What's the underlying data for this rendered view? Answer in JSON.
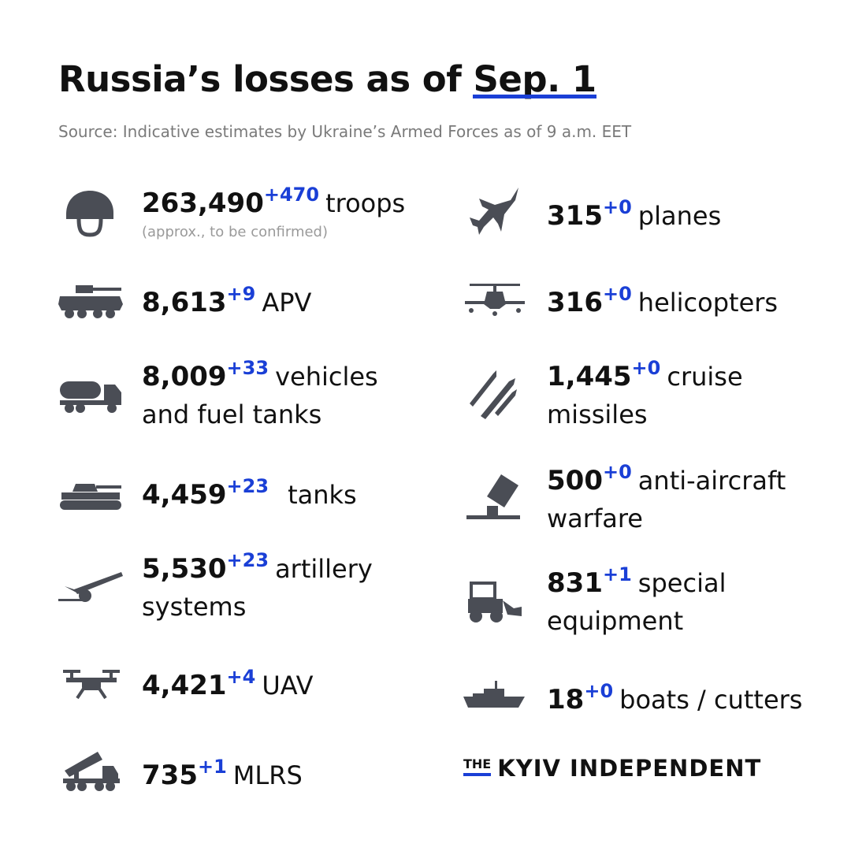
{
  "header": {
    "title_prefix": "Russia’s losses as of",
    "title_date": "Sep. 1",
    "source": "Source: Indicative estimates by Ukraine’s Armed Forces as of 9 a.m. EET"
  },
  "stats": {
    "troops": {
      "value": "263,490",
      "delta": "+470",
      "line1": "troops",
      "note": "(approx., to be confirmed)",
      "icon": "helmet-icon"
    },
    "apv": {
      "value": "8,613",
      "delta": "+9",
      "line1": "APV",
      "icon": "apc-icon"
    },
    "vehicles": {
      "value": "8,009",
      "delta": "+33",
      "line1": "vehicles",
      "line2": "and fuel tanks",
      "icon": "fuel-truck-icon"
    },
    "tanks": {
      "value": "4,459",
      "delta": "+23",
      "line1": "tanks",
      "icon": "tank-icon"
    },
    "artillery": {
      "value": "5,530",
      "delta": "+23",
      "line1": "artillery",
      "line2": "systems",
      "icon": "artillery-icon"
    },
    "uav": {
      "value": "4,421",
      "delta": "+4",
      "line1": "UAV",
      "icon": "drone-icon"
    },
    "mlrs": {
      "value": "735",
      "delta": "+1",
      "line1": "MLRS",
      "icon": "mlrs-icon"
    },
    "planes": {
      "value": "315",
      "delta": "+0",
      "line1": "planes",
      "icon": "jet-icon"
    },
    "helicopters": {
      "value": "316",
      "delta": "+0",
      "line1": "helicopters",
      "icon": "helicopter-icon"
    },
    "missiles": {
      "value": "1,445",
      "delta": "+0",
      "line1": "cruise",
      "line2": "missiles",
      "icon": "missile-icon"
    },
    "antiair": {
      "value": "500",
      "delta": "+0",
      "line1": "anti-aircraft",
      "line2": "warfare",
      "icon": "anti-aircraft-icon"
    },
    "special": {
      "value": "831",
      "delta": "+1",
      "line1": "special",
      "line2": "equipment",
      "icon": "loader-icon"
    },
    "boats": {
      "value": "18",
      "delta": "+0",
      "line1": "boats / cutters",
      "icon": "ship-icon"
    }
  },
  "footer": {
    "logo_the": "THE",
    "logo_name": "KYIV INDEPENDENT"
  },
  "colors": {
    "accent": "#1a3fd6",
    "text": "#111111",
    "muted": "#7a7a7a",
    "icon": "#4a4d55"
  }
}
